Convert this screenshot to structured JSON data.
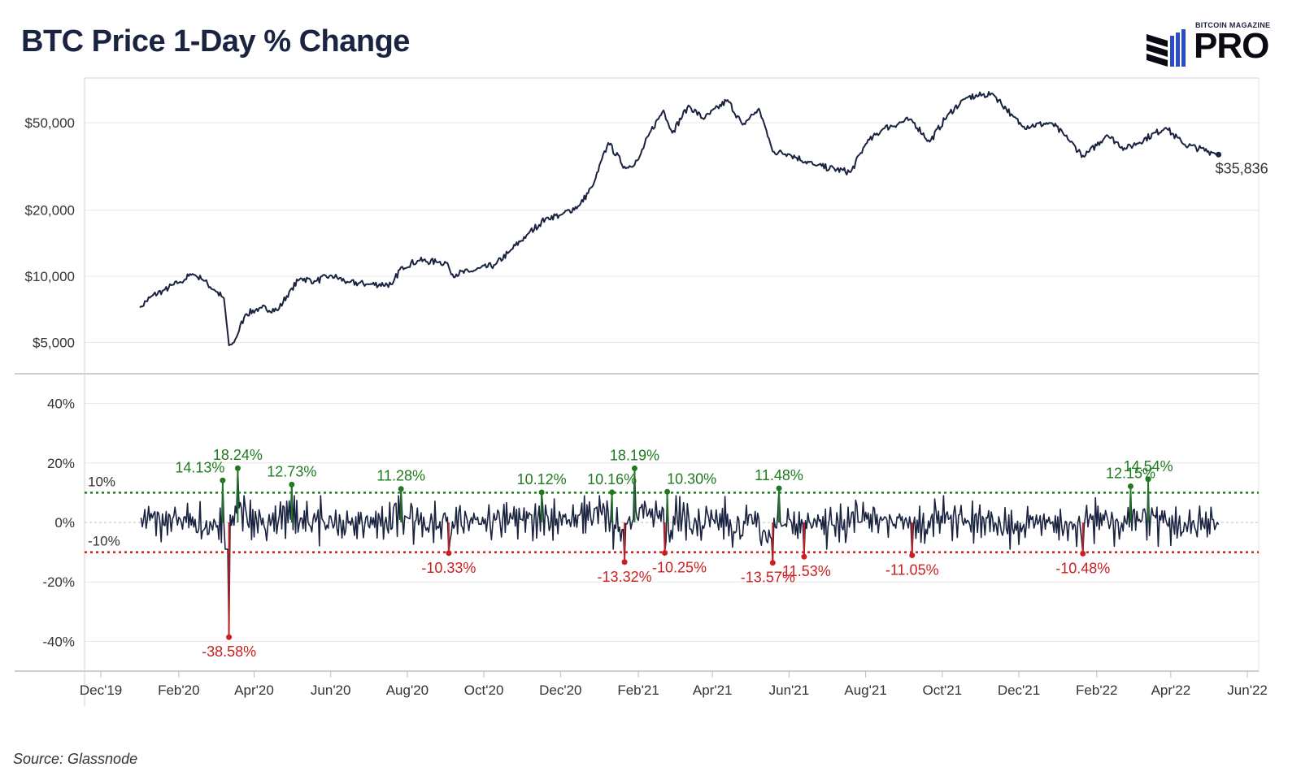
{
  "title": "BTC Price 1-Day % Change",
  "logo": {
    "small_text": "BITCOIN MAGAZINE",
    "big_text": "PRO"
  },
  "source": "Source: Glassnode",
  "colors": {
    "line": "#1a2340",
    "positive": "#1f7a1f",
    "negative": "#cc1f1f",
    "grid": "#e6e6e6",
    "axis_text": "#333333"
  },
  "chart_data": [
    {
      "type": "line",
      "series": [
        {
          "values": [
            [
              "2020-01-01",
              7200
            ],
            [
              "2020-01-10",
              8100
            ],
            [
              "2020-01-20",
              8650
            ],
            [
              "2020-02-01",
              9350
            ],
            [
              "2020-02-12",
              10250
            ],
            [
              "2020-02-20",
              9650
            ],
            [
              "2020-03-01",
              8600
            ],
            [
              "2020-03-08",
              7950
            ],
            [
              "2020-03-12",
              4850
            ],
            [
              "2020-03-16",
              5000
            ],
            [
              "2020-03-25",
              6700
            ],
            [
              "2020-04-06",
              7200
            ],
            [
              "2020-04-20",
              7000
            ],
            [
              "2020-04-30",
              8700
            ],
            [
              "2020-05-08",
              9800
            ],
            [
              "2020-05-20",
              9500
            ],
            [
              "2020-06-01",
              10100
            ],
            [
              "2020-06-15",
              9400
            ],
            [
              "2020-07-01",
              9200
            ],
            [
              "2020-07-20",
              9200
            ],
            [
              "2020-07-27",
              11000
            ],
            [
              "2020-08-10",
              11800
            ],
            [
              "2020-08-25",
              11600
            ],
            [
              "2020-09-02",
              11500
            ],
            [
              "2020-09-05",
              10200
            ],
            [
              "2020-09-20",
              10500
            ],
            [
              "2020-10-10",
              11300
            ],
            [
              "2020-10-21",
              12900
            ],
            [
              "2020-11-05",
              15600
            ],
            [
              "2020-11-20",
              18500
            ],
            [
              "2020-12-01",
              19000
            ],
            [
              "2020-12-16",
              21000
            ],
            [
              "2020-12-27",
              26000
            ],
            [
              "2021-01-08",
              40500
            ],
            [
              "2021-01-22",
              31000
            ],
            [
              "2021-02-01",
              34000
            ],
            [
              "2021-02-10",
              45000
            ],
            [
              "2021-02-21",
              57000
            ],
            [
              "2021-02-28",
              45000
            ],
            [
              "2021-03-13",
              60000
            ],
            [
              "2021-03-25",
              52000
            ],
            [
              "2021-04-13",
              63500
            ],
            [
              "2021-04-25",
              49000
            ],
            [
              "2021-05-08",
              58000
            ],
            [
              "2021-05-12",
              50000
            ],
            [
              "2021-05-19",
              37000
            ],
            [
              "2021-06-01",
              36000
            ],
            [
              "2021-06-22",
              32000
            ],
            [
              "2021-07-20",
              29800
            ],
            [
              "2021-08-01",
              40000
            ],
            [
              "2021-08-15",
              47000
            ],
            [
              "2021-09-06",
              52000
            ],
            [
              "2021-09-21",
              41000
            ],
            [
              "2021-10-06",
              55000
            ],
            [
              "2021-10-20",
              65000
            ],
            [
              "2021-11-10",
              68000
            ],
            [
              "2021-11-26",
              54000
            ],
            [
              "2021-12-04",
              48000
            ],
            [
              "2021-12-27",
              50000
            ],
            [
              "2022-01-10",
              41500
            ],
            [
              "2022-01-22",
              35000
            ],
            [
              "2022-02-09",
              44000
            ],
            [
              "2022-02-24",
              38000
            ],
            [
              "2022-03-28",
              47500
            ],
            [
              "2022-04-11",
              40000
            ],
            [
              "2022-05-05",
              36500
            ],
            [
              "2022-05-09",
              35836
            ]
          ]
        }
      ],
      "end_label": "$35,836",
      "y_ticks": [
        "$5,000",
        "$10,000",
        "$20,000",
        "$50,000"
      ],
      "y_tick_values": [
        5000,
        10000,
        20000,
        50000
      ],
      "y_scale": "log",
      "ylim": [
        3600,
        80000
      ],
      "grid": true
    },
    {
      "type": "line",
      "y_ticks": [
        "-40%",
        "-20%",
        "0%",
        "20%",
        "40%"
      ],
      "y_tick_values": [
        -40,
        -20,
        0,
        20,
        40
      ],
      "ylim": [
        -50,
        50
      ],
      "thresholds": [
        {
          "value": 10,
          "label": "10%",
          "color": "#1f7a1f"
        },
        {
          "value": -10,
          "label": "-10%",
          "color": "#cc1f1f"
        }
      ],
      "annotations": [
        [
          "2020-03-07",
          14.13,
          "14.13%"
        ],
        [
          "2020-03-12",
          -38.58,
          "-38.58%"
        ],
        [
          "2020-03-19",
          18.24,
          "18.24%"
        ],
        [
          "2020-05-01",
          12.73,
          "12.73%"
        ],
        [
          "2020-07-27",
          11.28,
          "11.28%"
        ],
        [
          "2020-09-03",
          -10.33,
          "-10.33%"
        ],
        [
          "2020-11-16",
          10.12,
          "10.12%"
        ],
        [
          "2021-01-11",
          10.16,
          "10.16%"
        ],
        [
          "2021-01-21",
          -13.32,
          "-13.32%"
        ],
        [
          "2021-01-29",
          18.19,
          "18.19%"
        ],
        [
          "2021-02-22",
          -10.25,
          "-10.25%"
        ],
        [
          "2021-02-24",
          10.3,
          "10.30%"
        ],
        [
          "2021-05-19",
          -13.57,
          "-13.57%"
        ],
        [
          "2021-05-24",
          11.48,
          "11.48%"
        ],
        [
          "2021-06-13",
          -11.53,
          "-11.53%"
        ],
        [
          "2021-09-07",
          -11.05,
          "-11.05%"
        ],
        [
          "2022-01-21",
          -10.48,
          "-10.48%"
        ],
        [
          "2022-02-28",
          12.15,
          "12.15%"
        ],
        [
          "2022-03-14",
          14.54,
          "14.54%"
        ]
      ]
    }
  ],
  "x_axis": {
    "ticks": [
      "Dec'19",
      "Feb'20",
      "Apr'20",
      "Jun'20",
      "Aug'20",
      "Oct'20",
      "Dec'20",
      "Feb'21",
      "Apr'21",
      "Jun'21",
      "Aug'21",
      "Oct'21",
      "Dec'21",
      "Feb'22",
      "Apr'22",
      "Jun'22"
    ],
    "tick_dates": [
      "2019-12-01",
      "2020-02-01",
      "2020-04-01",
      "2020-06-01",
      "2020-08-01",
      "2020-10-01",
      "2020-12-01",
      "2021-02-01",
      "2021-04-01",
      "2021-06-01",
      "2021-08-01",
      "2021-10-01",
      "2021-12-01",
      "2022-02-01",
      "2022-04-01",
      "2022-06-01"
    ]
  }
}
